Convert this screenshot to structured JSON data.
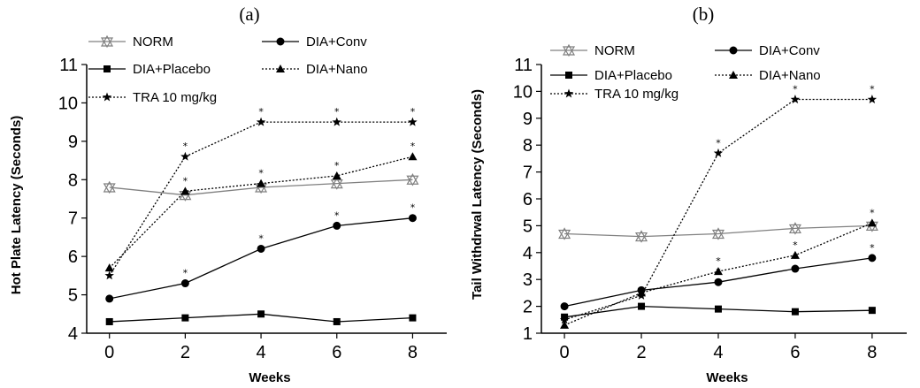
{
  "chart_data": [
    {
      "type": "line",
      "panel_label": "(a)",
      "xlabel": "Weeks",
      "ylabel": "Hot Plate Latency (Seconds)",
      "x": [
        0,
        2,
        4,
        6,
        8
      ],
      "xlim": [
        -0.6,
        8.9
      ],
      "ylim": [
        4,
        11
      ],
      "xticks": [
        0,
        2,
        4,
        6,
        8
      ],
      "yticks": [
        4,
        5,
        6,
        7,
        8,
        9,
        10,
        11
      ],
      "series": [
        {
          "name": "NORM",
          "values": [
            7.8,
            7.6,
            7.8,
            7.9,
            8.0
          ],
          "marker": "triangle-open",
          "dashed": false,
          "stars": [
            false,
            false,
            false,
            false,
            false
          ],
          "color": "#808080"
        },
        {
          "name": "DIA+Conv",
          "values": [
            4.9,
            5.3,
            6.2,
            6.8,
            7.0
          ],
          "marker": "circle",
          "dashed": false,
          "stars": [
            false,
            true,
            true,
            true,
            true
          ],
          "color": "#000000"
        },
        {
          "name": "DIA+Placebo",
          "values": [
            4.3,
            4.4,
            4.5,
            4.3,
            4.4
          ],
          "marker": "square",
          "dashed": false,
          "stars": [
            false,
            false,
            false,
            false,
            false
          ],
          "color": "#000000"
        },
        {
          "name": "DIA+Nano",
          "values": [
            5.7,
            7.7,
            7.9,
            8.1,
            8.6
          ],
          "marker": "triangle",
          "dashed": true,
          "stars": [
            false,
            true,
            true,
            true,
            true
          ],
          "color": "#000000"
        },
        {
          "name": "TRA 10 mg/kg",
          "values": [
            5.5,
            8.6,
            9.5,
            9.5,
            9.5
          ],
          "marker": "star",
          "dashed": true,
          "stars": [
            false,
            true,
            true,
            true,
            true
          ],
          "color": "#000000"
        }
      ],
      "legend": [
        {
          "series": "NORM",
          "label": "NORM"
        },
        {
          "series": "DIA+Conv",
          "label": "DIA+Conv"
        },
        {
          "series": "DIA+Placebo",
          "label": "DIA+Placebo"
        },
        {
          "series": "DIA+Nano",
          "label": "DIA+Nano"
        },
        {
          "series": "TRA 10 mg/kg",
          "label": "TRA 10 mg/kg"
        }
      ]
    },
    {
      "type": "line",
      "panel_label": "(b)",
      "xlabel": "Weeks",
      "ylabel": "Tail Withdrwal Latency (Seconds)",
      "x": [
        0,
        2,
        4,
        6,
        8
      ],
      "xlim": [
        -0.6,
        8.9
      ],
      "ylim": [
        1,
        11
      ],
      "xticks": [
        0,
        2,
        4,
        6,
        8
      ],
      "yticks": [
        1,
        2,
        3,
        4,
        5,
        6,
        7,
        8,
        9,
        10,
        11
      ],
      "series": [
        {
          "name": "NORM",
          "values": [
            4.7,
            4.6,
            4.7,
            4.9,
            5.0
          ],
          "marker": "triangle-open",
          "dashed": false,
          "stars": [
            false,
            false,
            false,
            false,
            false
          ],
          "color": "#808080"
        },
        {
          "name": "DIA+Conv",
          "values": [
            2.0,
            2.6,
            2.9,
            3.4,
            3.8
          ],
          "marker": "circle",
          "dashed": false,
          "stars": [
            false,
            false,
            true,
            true,
            true
          ],
          "color": "#000000"
        },
        {
          "name": "DIA+Placebo",
          "values": [
            1.6,
            2.0,
            1.9,
            1.8,
            1.85
          ],
          "marker": "square",
          "dashed": false,
          "stars": [
            false,
            false,
            false,
            false,
            false
          ],
          "color": "#000000"
        },
        {
          "name": "DIA+Nano",
          "values": [
            1.3,
            2.5,
            3.3,
            3.9,
            5.1
          ],
          "marker": "triangle",
          "dashed": true,
          "stars": [
            false,
            false,
            true,
            true,
            true
          ],
          "color": "#000000"
        },
        {
          "name": "TRA 10 mg/kg",
          "values": [
            1.5,
            2.4,
            7.7,
            9.7,
            9.7
          ],
          "marker": "star",
          "dashed": true,
          "stars": [
            false,
            false,
            true,
            true,
            true
          ],
          "color": "#000000"
        }
      ],
      "legend": [
        {
          "series": "NORM",
          "label": "NORM"
        },
        {
          "series": "DIA+Conv",
          "label": "DIA+Conv"
        },
        {
          "series": "DIA+Placebo",
          "label": "DIA+Placebo"
        },
        {
          "series": "DIA+Nano",
          "label": "DIA+Nano"
        },
        {
          "series": "TRA 10 mg/kg",
          "label": "TRA 10 mg/kg"
        }
      ]
    }
  ]
}
